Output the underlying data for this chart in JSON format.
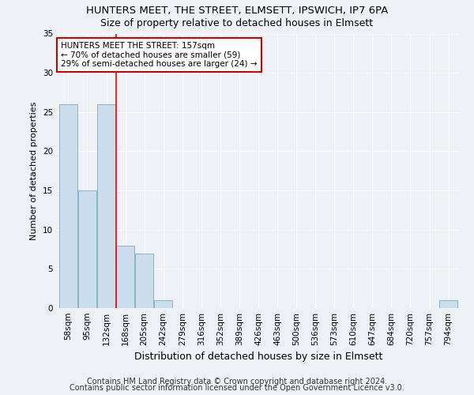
{
  "title1": "HUNTERS MEET, THE STREET, ELMSETT, IPSWICH, IP7 6PA",
  "title2": "Size of property relative to detached houses in Elmsett",
  "xlabel": "Distribution of detached houses by size in Elmsett",
  "ylabel": "Number of detached properties",
  "bin_labels": [
    "58sqm",
    "95sqm",
    "132sqm",
    "168sqm",
    "205sqm",
    "242sqm",
    "279sqm",
    "316sqm",
    "352sqm",
    "389sqm",
    "426sqm",
    "463sqm",
    "500sqm",
    "536sqm",
    "573sqm",
    "610sqm",
    "647sqm",
    "684sqm",
    "720sqm",
    "757sqm",
    "794sqm"
  ],
  "bar_values": [
    26,
    15,
    26,
    8,
    7,
    1,
    0,
    0,
    0,
    0,
    0,
    0,
    0,
    0,
    0,
    0,
    0,
    0,
    0,
    0,
    1
  ],
  "bar_color": "#ccdded",
  "bar_edge_color": "#7aaabb",
  "red_line_index": 2.5,
  "annotation_text": "HUNTERS MEET THE STREET: 157sqm\n← 70% of detached houses are smaller (59)\n29% of semi-detached houses are larger (24) →",
  "annotation_box_color": "#ffffff",
  "annotation_box_edge_color": "#cc0000",
  "ylim": [
    0,
    35
  ],
  "yticks": [
    0,
    5,
    10,
    15,
    20,
    25,
    30,
    35
  ],
  "footer1": "Contains HM Land Registry data © Crown copyright and database right 2024.",
  "footer2": "Contains public sector information licensed under the Open Government Licence v3.0.",
  "background_color": "#eef2f7",
  "grid_color": "#ffffff",
  "title1_fontsize": 9.5,
  "title2_fontsize": 9,
  "ylabel_fontsize": 8,
  "xlabel_fontsize": 9,
  "tick_fontsize": 7.5,
  "annotation_fontsize": 7.5,
  "footer_fontsize": 7
}
